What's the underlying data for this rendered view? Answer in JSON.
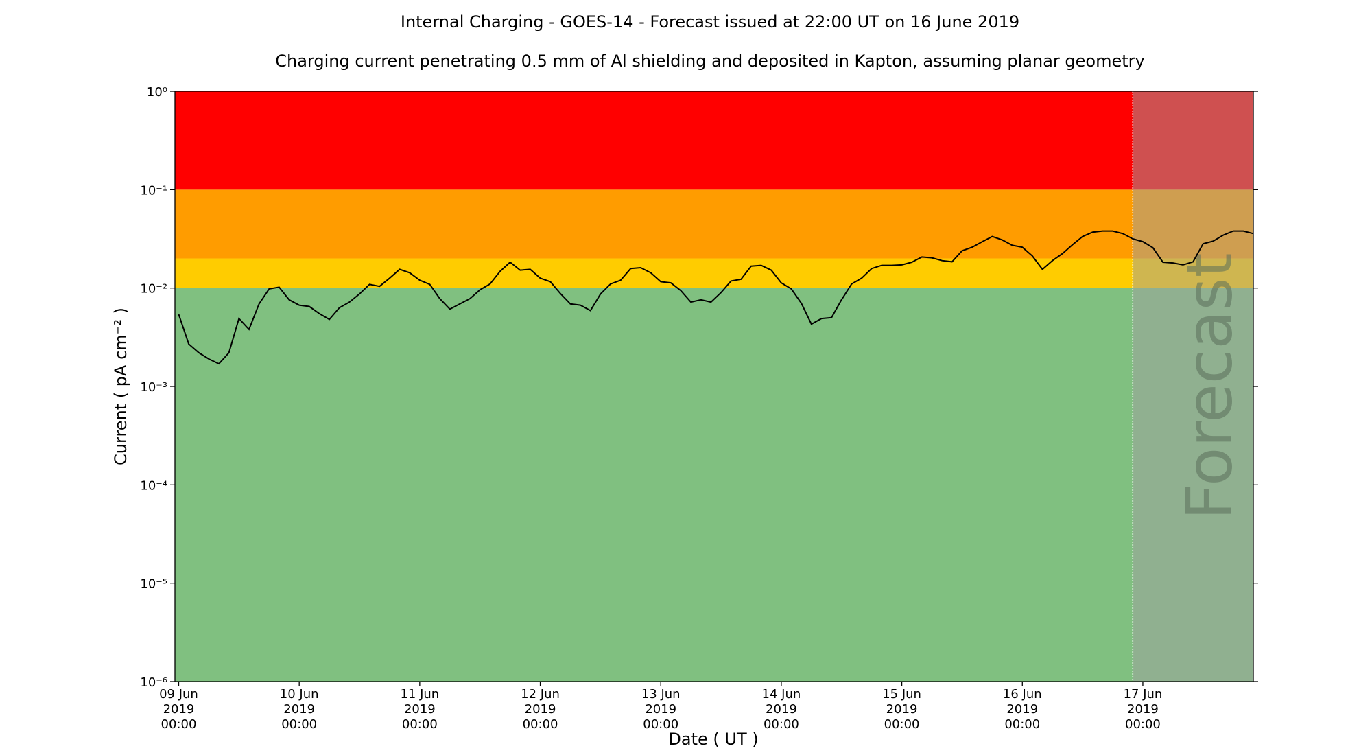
{
  "chart_data": {
    "type": "line",
    "title": "Internal Charging - GOES-14 - Forecast issued at 22:00 UT on 16 June 2019",
    "subtitle": "Charging current penetrating 0.5 mm of Al shielding and deposited in Kapton, assuming planar geometry",
    "xlabel": "Date ( UT )",
    "ylabel": "Current ( pA cm⁻² )",
    "yscale": "log",
    "xlim": [
      "2019-06-08 23:15",
      "2019-06-17 22:00"
    ],
    "ylim": [
      1e-06,
      1
    ],
    "yticks": [
      {
        "value": 1e-06,
        "label": "10⁻⁶"
      },
      {
        "value": 1e-05,
        "label": "10⁻⁵"
      },
      {
        "value": 0.0001,
        "label": "10⁻⁴"
      },
      {
        "value": 0.001,
        "label": "10⁻³"
      },
      {
        "value": 0.01,
        "label": "10⁻²"
      },
      {
        "value": 0.1,
        "label": "10⁻¹"
      },
      {
        "value": 1,
        "label": "10⁰"
      }
    ],
    "xticks": [
      {
        "value": "2019-06-09 00:00",
        "label": [
          "09 Jun",
          "2019",
          "00:00"
        ]
      },
      {
        "value": "2019-06-10 00:00",
        "label": [
          "10 Jun",
          "2019",
          "00:00"
        ]
      },
      {
        "value": "2019-06-11 00:00",
        "label": [
          "11 Jun",
          "2019",
          "00:00"
        ]
      },
      {
        "value": "2019-06-12 00:00",
        "label": [
          "12 Jun",
          "2019",
          "00:00"
        ]
      },
      {
        "value": "2019-06-13 00:00",
        "label": [
          "13 Jun",
          "2019",
          "00:00"
        ]
      },
      {
        "value": "2019-06-14 00:00",
        "label": [
          "14 Jun",
          "2019",
          "00:00"
        ]
      },
      {
        "value": "2019-06-15 00:00",
        "label": [
          "15 Jun",
          "2019",
          "00:00"
        ]
      },
      {
        "value": "2019-06-16 00:00",
        "label": [
          "16 Jun",
          "2019",
          "00:00"
        ]
      },
      {
        "value": "2019-06-17 00:00",
        "label": [
          "17 Jun",
          "2019",
          "00:00"
        ]
      }
    ],
    "bands": [
      {
        "from": 1e-06,
        "to": 0.01,
        "color": "#80c080"
      },
      {
        "from": 0.01,
        "to": 0.02,
        "color": "#ffcc00"
      },
      {
        "from": 0.02,
        "to": 0.1,
        "color": "#ff9c00"
      },
      {
        "from": 0.1,
        "to": 1,
        "color": "#ff0000"
      }
    ],
    "forecast": {
      "start": "2019-06-16 22:00",
      "label": "Forecast",
      "color": "rgba(160,160,160,0.5)"
    },
    "x": [
      "2019-06-09 00:00",
      "2019-06-09 02:00",
      "2019-06-09 04:00",
      "2019-06-09 06:00",
      "2019-06-09 08:00",
      "2019-06-09 10:00",
      "2019-06-09 12:00",
      "2019-06-09 14:00",
      "2019-06-09 16:00",
      "2019-06-09 18:00",
      "2019-06-09 20:00",
      "2019-06-09 22:00",
      "2019-06-10 00:00",
      "2019-06-10 02:00",
      "2019-06-10 04:00",
      "2019-06-10 06:00",
      "2019-06-10 08:00",
      "2019-06-10 10:00",
      "2019-06-10 12:00",
      "2019-06-10 14:00",
      "2019-06-10 16:00",
      "2019-06-10 18:00",
      "2019-06-10 20:00",
      "2019-06-10 22:00",
      "2019-06-11 00:00",
      "2019-06-11 02:00",
      "2019-06-11 04:00",
      "2019-06-11 06:00",
      "2019-06-11 08:00",
      "2019-06-11 10:00",
      "2019-06-11 12:00",
      "2019-06-11 14:00",
      "2019-06-11 16:00",
      "2019-06-11 18:00",
      "2019-06-11 20:00",
      "2019-06-11 22:00",
      "2019-06-12 00:00",
      "2019-06-12 02:00",
      "2019-06-12 04:00",
      "2019-06-12 06:00",
      "2019-06-12 08:00",
      "2019-06-12 10:00",
      "2019-06-12 12:00",
      "2019-06-12 14:00",
      "2019-06-12 16:00",
      "2019-06-12 18:00",
      "2019-06-12 20:00",
      "2019-06-12 22:00",
      "2019-06-13 00:00",
      "2019-06-13 02:00",
      "2019-06-13 04:00",
      "2019-06-13 06:00",
      "2019-06-13 08:00",
      "2019-06-13 10:00",
      "2019-06-13 12:00",
      "2019-06-13 14:00",
      "2019-06-13 16:00",
      "2019-06-13 18:00",
      "2019-06-13 20:00",
      "2019-06-13 22:00",
      "2019-06-14 00:00",
      "2019-06-14 02:00",
      "2019-06-14 04:00",
      "2019-06-14 06:00",
      "2019-06-14 08:00",
      "2019-06-14 10:00",
      "2019-06-14 12:00",
      "2019-06-14 14:00",
      "2019-06-14 16:00",
      "2019-06-14 18:00",
      "2019-06-14 20:00",
      "2019-06-14 22:00",
      "2019-06-15 00:00",
      "2019-06-15 02:00",
      "2019-06-15 04:00",
      "2019-06-15 06:00",
      "2019-06-15 08:00",
      "2019-06-15 10:00",
      "2019-06-15 12:00",
      "2019-06-15 14:00",
      "2019-06-15 16:00",
      "2019-06-15 18:00",
      "2019-06-15 20:00",
      "2019-06-15 22:00",
      "2019-06-16 00:00",
      "2019-06-16 02:00",
      "2019-06-16 04:00",
      "2019-06-16 06:00",
      "2019-06-16 08:00",
      "2019-06-16 10:00",
      "2019-06-16 12:00",
      "2019-06-16 14:00",
      "2019-06-16 16:00",
      "2019-06-16 18:00",
      "2019-06-16 20:00",
      "2019-06-16 22:00",
      "2019-06-17 00:00",
      "2019-06-17 02:00",
      "2019-06-17 04:00",
      "2019-06-17 06:00",
      "2019-06-17 08:00",
      "2019-06-17 10:00",
      "2019-06-17 12:00",
      "2019-06-17 14:00",
      "2019-06-17 16:00",
      "2019-06-17 18:00",
      "2019-06-17 20:00",
      "2019-06-17 22:00"
    ],
    "series": [
      {
        "color": "#000000",
        "values": [
          0.0054,
          0.0027,
          0.0022,
          0.0019,
          0.0017,
          0.0022,
          0.0049,
          0.0038,
          0.0069,
          0.0098,
          0.0102,
          0.0076,
          0.0067,
          0.0065,
          0.0055,
          0.0048,
          0.0063,
          0.0072,
          0.0087,
          0.0109,
          0.0104,
          0.0126,
          0.0155,
          0.0143,
          0.012,
          0.0109,
          0.0078,
          0.0061,
          0.0069,
          0.0078,
          0.0096,
          0.011,
          0.0148,
          0.0183,
          0.0152,
          0.0155,
          0.0126,
          0.0116,
          0.0088,
          0.0069,
          0.0067,
          0.0059,
          0.0087,
          0.011,
          0.012,
          0.0158,
          0.0161,
          0.0143,
          0.0116,
          0.0113,
          0.0094,
          0.0072,
          0.0076,
          0.0072,
          0.009,
          0.0118,
          0.0123,
          0.0167,
          0.017,
          0.0152,
          0.0113,
          0.0098,
          0.007,
          0.0043,
          0.0049,
          0.005,
          0.0076,
          0.011,
          0.0126,
          0.0158,
          0.017,
          0.017,
          0.0172,
          0.0183,
          0.0207,
          0.0203,
          0.019,
          0.0185,
          0.0239,
          0.026,
          0.0295,
          0.0334,
          0.0308,
          0.0272,
          0.026,
          0.0212,
          0.0155,
          0.019,
          0.0224,
          0.0276,
          0.0334,
          0.037,
          0.038,
          0.038,
          0.0358,
          0.0316,
          0.0296,
          0.0257,
          0.0183,
          0.018,
          0.0172,
          0.0185,
          0.0282,
          0.03,
          0.0345,
          0.038,
          0.038,
          0.0358
        ]
      }
    ]
  }
}
